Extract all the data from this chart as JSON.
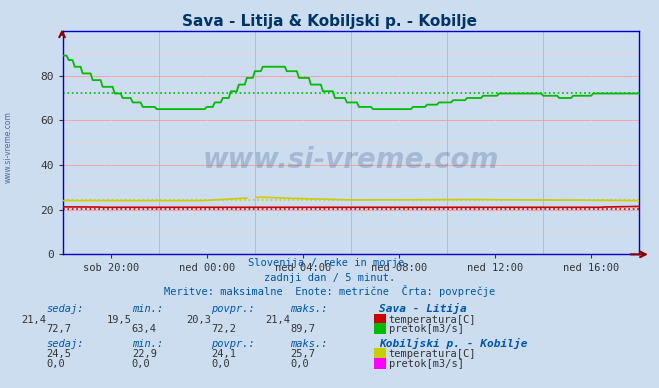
{
  "title": "Sava - Litija & Kobiljski p. - Kobilje",
  "background_color": "#ccddf0",
  "plot_bg_color": "#ccddf0",
  "xlim": [
    0,
    288
  ],
  "ylim": [
    0,
    100
  ],
  "yticks": [
    0,
    20,
    40,
    60,
    80
  ],
  "xtick_labels": [
    "sob 20:00",
    "ned 00:00",
    "ned 04:00",
    "ned 08:00",
    "ned 12:00",
    "ned 16:00"
  ],
  "xtick_positions": [
    24,
    72,
    120,
    168,
    216,
    264
  ],
  "grid_major_color": "#ff9999",
  "grid_minor_color": "#ffcccc",
  "axis_color": "#0000cc",
  "sava_temp_color": "#cc0000",
  "sava_flow_color": "#00bb00",
  "kobiljski_temp_color": "#cccc00",
  "kobiljski_flow_color": "#ff00ff",
  "sava_temp_avg": 20.3,
  "sava_flow_avg": 72.2,
  "kobiljski_temp_avg": 24.1,
  "watermark": "www.si-vreme.com",
  "watermark_color": "#1a3a6e",
  "subtitle1": "Slovenija / reke in morje.",
  "subtitle2": "zadnji dan / 5 minut.",
  "subtitle3": "Meritve: maksimalne  Enote: metrične  Črta: povprečje",
  "info_color": "#0055aa",
  "arrow_color": "#880000",
  "left_label": "www.si-vreme.com",
  "sava_sedaj": "21,4",
  "sava_min": "19,5",
  "sava_povpr": "20,3",
  "sava_maks": "21,4",
  "sava_flow_sedaj": "72,7",
  "sava_flow_min": "63,4",
  "sava_flow_povpr": "72,2",
  "sava_flow_maks": "89,7",
  "kob_sedaj": "24,5",
  "kob_min": "22,9",
  "kob_povpr": "24,1",
  "kob_maks": "25,7",
  "kob_flow_sedaj": "0,0",
  "kob_flow_min": "0,0",
  "kob_flow_povpr": "0,0",
  "kob_flow_maks": "0,0"
}
